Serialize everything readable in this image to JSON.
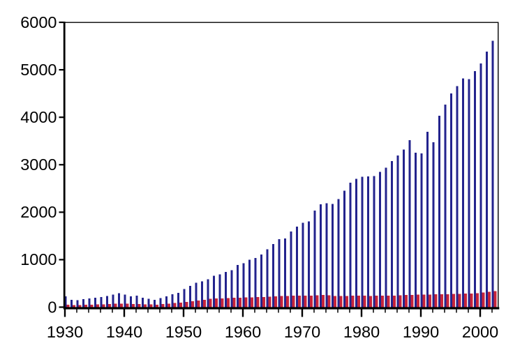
{
  "chart_data": {
    "type": "bar",
    "title": "",
    "legend": "none",
    "grid": false,
    "background": "#ffffff",
    "axis_color": "#000000",
    "x_axis": {
      "year_start": 1930,
      "year_end": 2002,
      "major_tick_years": [
        1930,
        1940,
        1950,
        1960,
        1970,
        1980,
        1990,
        2000
      ],
      "tick_labels": [
        "1930",
        "1940",
        "1950",
        "1960",
        "1970",
        "1980",
        "1990",
        "2000"
      ],
      "minor_tick_step_years": 2
    },
    "y_axis": {
      "ylim": [
        0,
        6000
      ],
      "ticks": [
        0,
        1000,
        2000,
        3000,
        4000,
        5000,
        6000
      ],
      "tick_labels": [
        "0",
        "1000",
        "2000",
        "3000",
        "4000",
        "5000",
        "6000"
      ]
    },
    "categories": [
      1930,
      1931,
      1932,
      1933,
      1934,
      1935,
      1936,
      1937,
      1938,
      1939,
      1940,
      1941,
      1942,
      1943,
      1944,
      1945,
      1946,
      1947,
      1948,
      1949,
      1950,
      1951,
      1952,
      1953,
      1954,
      1955,
      1956,
      1957,
      1958,
      1959,
      1960,
      1961,
      1962,
      1963,
      1964,
      1965,
      1966,
      1967,
      1968,
      1969,
      1970,
      1971,
      1972,
      1973,
      1974,
      1975,
      1976,
      1977,
      1978,
      1979,
      1980,
      1981,
      1982,
      1983,
      1984,
      1985,
      1986,
      1987,
      1988,
      1989,
      1990,
      1991,
      1992,
      1993,
      1994,
      1995,
      1996,
      1997,
      1998,
      1999,
      2000,
      2001,
      2002
    ],
    "series": [
      {
        "name": "blue_series",
        "color": "#23238d",
        "values": [
          230,
          157,
          146,
          167,
          181,
          196,
          215,
          234,
          264,
          293,
          264,
          230,
          245,
          196,
          176,
          157,
          190,
          225,
          269,
          303,
          381,
          449,
          512,
          547,
          590,
          660,
          694,
          742,
          782,
          889,
          928,
          996,
          1035,
          1108,
          1221,
          1328,
          1435,
          1450,
          1596,
          1694,
          1777,
          1806,
          2035,
          2167,
          2191,
          2177,
          2279,
          2450,
          2620,
          2703,
          2743,
          2752,
          2762,
          2850,
          2938,
          3074,
          3192,
          3319,
          3515,
          3255,
          3241,
          3695,
          3475,
          4035,
          4265,
          4500,
          4655,
          4815,
          4800,
          4975,
          5135,
          5385,
          5612
        ]
      },
      {
        "name": "red_series",
        "color": "#c8243a",
        "values": [
          55,
          45,
          42,
          48,
          52,
          56,
          60,
          65,
          70,
          75,
          72,
          65,
          68,
          62,
          58,
          55,
          65,
          75,
          85,
          95,
          110,
          125,
          140,
          155,
          175,
          180,
          185,
          190,
          195,
          200,
          205,
          208,
          210,
          215,
          220,
          228,
          234,
          238,
          240,
          242,
          244,
          246,
          250,
          254,
          248,
          238,
          236,
          238,
          240,
          242,
          240,
          238,
          240,
          242,
          244,
          246,
          250,
          255,
          259,
          262,
          264,
          266,
          270,
          272,
          275,
          278,
          280,
          283,
          288,
          295,
          310,
          325,
          340
        ]
      }
    ]
  }
}
